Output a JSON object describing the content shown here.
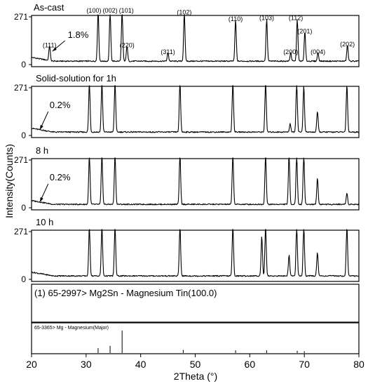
{
  "chart_data": {
    "type": "line",
    "xlabel": "2Theta (°)",
    "ylabel": "Intensity(Counts)",
    "xlim": [
      20,
      80
    ],
    "x_ticks": [
      "20",
      "30",
      "40",
      "50",
      "60",
      "70",
      "80"
    ],
    "y_tick_top": "271",
    "y_tick_zero": "0",
    "panels": [
      {
        "title": "As-cast",
        "annotation": "1.8%",
        "annotation_x": 23.3,
        "baseline": 0.06,
        "peaks": [
          {
            "x": 23.3,
            "h": 0.26,
            "label": "(111)"
          },
          {
            "x": 32.2,
            "h": 1.0,
            "label": "(100)"
          },
          {
            "x": 34.4,
            "h": 1.0,
            "label": "(002)"
          },
          {
            "x": 36.6,
            "h": 1.0,
            "label": "(101)"
          },
          {
            "x": 37.5,
            "h": 0.26,
            "label": "(220)"
          },
          {
            "x": 45.0,
            "h": 0.12,
            "label": "(311)"
          },
          {
            "x": 48.0,
            "h": 0.96,
            "label": "(102)"
          },
          {
            "x": 57.4,
            "h": 0.82,
            "label": "(110)"
          },
          {
            "x": 63.1,
            "h": 0.84,
            "label": "(103)"
          },
          {
            "x": 67.5,
            "h": 0.12,
            "label": "(200)"
          },
          {
            "x": 68.7,
            "h": 0.84,
            "label": "(112)"
          },
          {
            "x": 70.1,
            "h": 0.56,
            "label": "(201)"
          },
          {
            "x": 72.5,
            "h": 0.12,
            "label": "(004)"
          },
          {
            "x": 77.9,
            "h": 0.28,
            "label": "(202)"
          }
        ]
      },
      {
        "title": "Solid-solution for 1h",
        "annotation": "0.2%",
        "annotation_x": 21.0,
        "baseline": 0.06,
        "peaks": [
          {
            "x": 30.6,
            "h": 1.0
          },
          {
            "x": 32.9,
            "h": 1.0
          },
          {
            "x": 35.3,
            "h": 1.0
          },
          {
            "x": 47.2,
            "h": 1.0
          },
          {
            "x": 56.9,
            "h": 1.0
          },
          {
            "x": 62.9,
            "h": 1.0
          },
          {
            "x": 67.4,
            "h": 0.12
          },
          {
            "x": 68.6,
            "h": 1.0
          },
          {
            "x": 69.9,
            "h": 0.92
          },
          {
            "x": 72.4,
            "h": 0.38
          },
          {
            "x": 77.8,
            "h": 0.95
          }
        ]
      },
      {
        "title": "8 h",
        "annotation": "0.2%",
        "annotation_x": 21.0,
        "baseline": 0.06,
        "peaks": [
          {
            "x": 30.6,
            "h": 1.0
          },
          {
            "x": 32.9,
            "h": 1.0
          },
          {
            "x": 35.3,
            "h": 1.0
          },
          {
            "x": 47.2,
            "h": 1.0
          },
          {
            "x": 56.9,
            "h": 1.0
          },
          {
            "x": 62.9,
            "h": 1.0
          },
          {
            "x": 67.2,
            "h": 1.0
          },
          {
            "x": 68.6,
            "h": 1.0
          },
          {
            "x": 69.9,
            "h": 1.0
          },
          {
            "x": 72.4,
            "h": 0.5
          },
          {
            "x": 77.8,
            "h": 0.18
          }
        ]
      },
      {
        "title": "10 h",
        "baseline": 0.06,
        "peaks": [
          {
            "x": 30.6,
            "h": 1.0
          },
          {
            "x": 32.9,
            "h": 1.0
          },
          {
            "x": 35.3,
            "h": 1.0
          },
          {
            "x": 47.2,
            "h": 1.0
          },
          {
            "x": 56.9,
            "h": 1.0
          },
          {
            "x": 62.2,
            "h": 0.78
          },
          {
            "x": 62.9,
            "h": 1.0
          },
          {
            "x": 67.2,
            "h": 0.38
          },
          {
            "x": 68.6,
            "h": 1.0
          },
          {
            "x": 69.9,
            "h": 1.0
          },
          {
            "x": 72.4,
            "h": 0.44
          },
          {
            "x": 77.8,
            "h": 1.0
          }
        ]
      }
    ],
    "references": [
      {
        "label": "(1) 65-2997> Mg2Sn - Magnesium Tin(100.0)",
        "lines": []
      },
      {
        "label": "65-3365> Mg - Magnesium(Major)",
        "lines": [
          {
            "x": 32.2,
            "h": 0.22
          },
          {
            "x": 34.4,
            "h": 0.32
          },
          {
            "x": 36.6,
            "h": 1.0
          },
          {
            "x": 47.8,
            "h": 0.14
          },
          {
            "x": 57.4,
            "h": 0.12
          },
          {
            "x": 63.1,
            "h": 0.12
          },
          {
            "x": 68.7,
            "h": 0.1
          },
          {
            "x": 70.0,
            "h": 0.08
          }
        ]
      }
    ]
  }
}
